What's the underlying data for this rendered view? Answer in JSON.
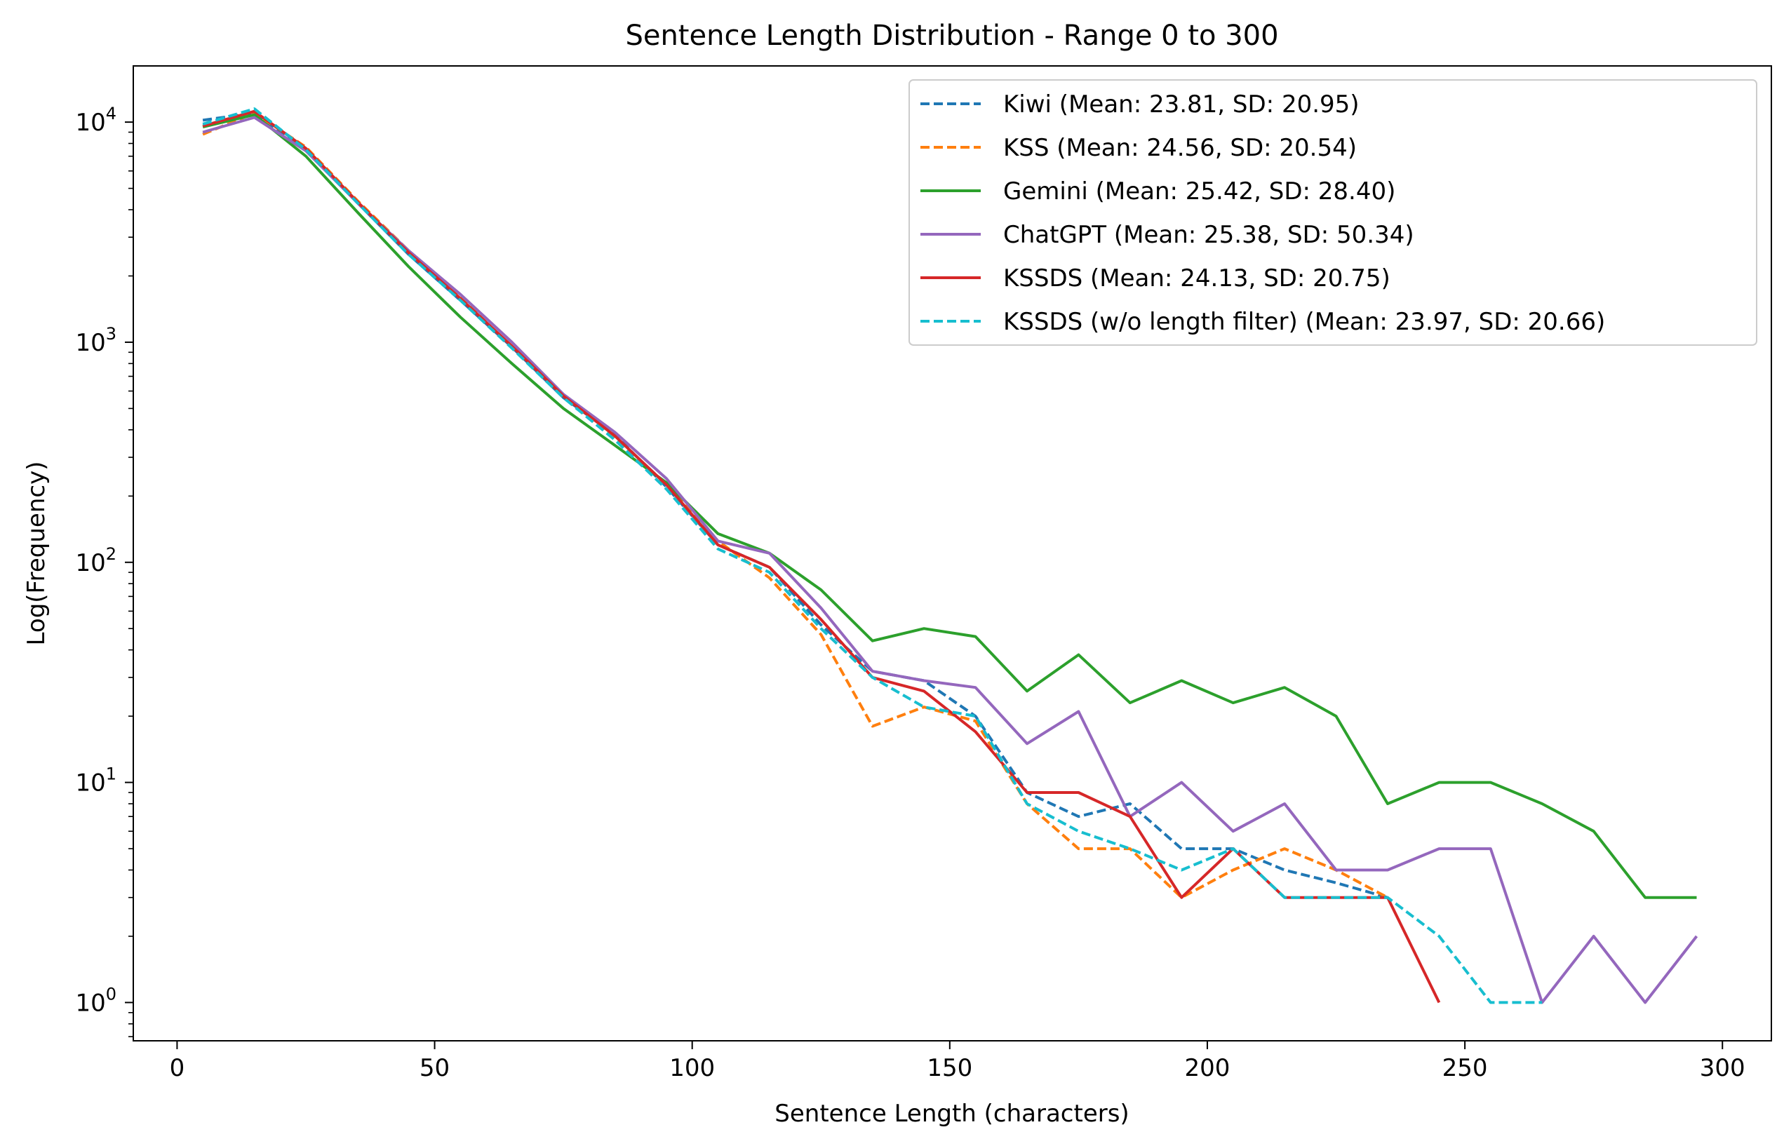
{
  "chart_data": {
    "type": "line",
    "title": "Sentence Length Distribution - Range 0 to 300",
    "xlabel": "Sentence Length (characters)",
    "ylabel": "Log(Frequency)",
    "xlim": [
      -8.5,
      309.5
    ],
    "ylim": [
      0.67,
      18000
    ],
    "yscale": "log",
    "xticks": [
      0,
      50,
      100,
      150,
      200,
      250,
      300
    ],
    "xtick_labels": [
      "0",
      "50",
      "100",
      "150",
      "200",
      "250",
      "300"
    ],
    "yticks": [
      1,
      10,
      100,
      1000,
      10000
    ],
    "ytick_labels": [
      {
        "base": "10",
        "exp": "0"
      },
      {
        "base": "10",
        "exp": "1"
      },
      {
        "base": "10",
        "exp": "2"
      },
      {
        "base": "10",
        "exp": "3"
      },
      {
        "base": "10",
        "exp": "4"
      }
    ],
    "grid": false,
    "legend_position": "top-right",
    "series": [
      {
        "name": "Kiwi (Mean: 23.81, SD: 20.95)",
        "color": "#1f77b4",
        "dash": "dashed",
        "x": [
          5,
          15,
          25,
          35,
          45,
          55,
          65,
          75,
          85,
          95,
          105,
          115,
          125,
          135,
          145,
          155,
          165,
          175,
          185,
          195,
          205,
          215,
          225,
          235
        ],
        "values": [
          10200,
          11000,
          7500,
          4300,
          2500,
          1550,
          950,
          560,
          380,
          220,
          120,
          95,
          52,
          32,
          29,
          20,
          9,
          7,
          8,
          5,
          5,
          4,
          3.5,
          3
        ]
      },
      {
        "name": "KSS (Mean: 24.56, SD: 20.54)",
        "color": "#ff7f0e",
        "dash": "dashed",
        "x": [
          5,
          15,
          25,
          35,
          45,
          55,
          65,
          75,
          85,
          95,
          105,
          115,
          125,
          135,
          145,
          155,
          165,
          175,
          185,
          195,
          205,
          215,
          225,
          235
        ],
        "values": [
          8800,
          11000,
          7700,
          4400,
          2600,
          1600,
          950,
          560,
          370,
          225,
          125,
          85,
          47,
          18,
          22,
          19,
          8,
          5,
          5,
          3,
          4,
          5,
          4,
          3
        ]
      },
      {
        "name": "Gemini (Mean: 25.42, SD: 28.40)",
        "color": "#2ca02c",
        "dash": "solid",
        "x": [
          5,
          15,
          25,
          35,
          45,
          55,
          65,
          75,
          85,
          95,
          105,
          115,
          125,
          135,
          145,
          155,
          165,
          175,
          185,
          195,
          205,
          215,
          225,
          235,
          245,
          255,
          265,
          275,
          285,
          295
        ],
        "values": [
          9500,
          10800,
          7000,
          3900,
          2200,
          1300,
          800,
          500,
          340,
          230,
          135,
          110,
          75,
          44,
          50,
          46,
          26,
          38,
          23,
          29,
          23,
          27,
          20,
          8,
          10,
          10,
          8,
          6,
          3,
          3
        ]
      },
      {
        "name": "ChatGPT (Mean: 25.38, SD: 50.34)",
        "color": "#9467bd",
        "dash": "solid",
        "x": [
          5,
          15,
          25,
          35,
          45,
          55,
          65,
          75,
          85,
          95,
          105,
          115,
          125,
          135,
          145,
          155,
          165,
          175,
          185,
          195,
          205,
          215,
          225,
          235,
          245,
          255,
          265,
          275,
          285,
          295
        ],
        "values": [
          9000,
          10500,
          7400,
          4300,
          2600,
          1650,
          1000,
          580,
          390,
          240,
          125,
          110,
          62,
          32,
          29,
          27,
          15,
          21,
          7,
          10,
          6,
          8,
          4,
          4,
          5,
          5,
          1,
          2,
          1,
          2
        ]
      },
      {
        "name": "KSSDS (Mean: 24.13, SD: 20.75)",
        "color": "#d62728",
        "dash": "solid",
        "x": [
          5,
          15,
          25,
          35,
          45,
          55,
          65,
          75,
          85,
          95,
          105,
          115,
          125,
          135,
          145,
          155,
          165,
          175,
          185,
          195,
          205,
          215,
          225,
          235,
          245
        ],
        "values": [
          9600,
          11200,
          7600,
          4350,
          2550,
          1580,
          960,
          570,
          375,
          225,
          120,
          95,
          55,
          30,
          26,
          17,
          9,
          9,
          7,
          3,
          5,
          3,
          3,
          3,
          1
        ]
      },
      {
        "name": "KSSDS (w/o length filter) (Mean: 23.97, SD: 20.66)",
        "color": "#17becf",
        "dash": "dashed",
        "x": [
          5,
          15,
          25,
          35,
          45,
          55,
          65,
          75,
          85,
          95,
          105,
          115,
          125,
          135,
          145,
          155,
          165,
          175,
          185,
          195,
          205,
          215,
          225,
          235,
          245,
          255,
          265
        ],
        "values": [
          9800,
          11500,
          7500,
          4300,
          2500,
          1550,
          940,
          560,
          360,
          215,
          115,
          90,
          50,
          30,
          22,
          20,
          8,
          6,
          5,
          4,
          5,
          3,
          3,
          3,
          2,
          1,
          1
        ]
      }
    ]
  }
}
